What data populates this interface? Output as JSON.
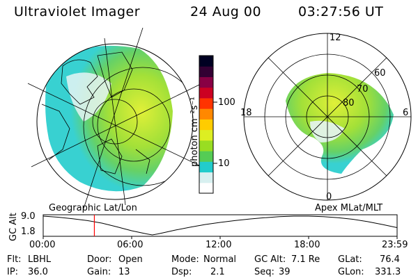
{
  "header": {
    "title": "Ultraviolet Imager",
    "date": "24 Aug 00",
    "time": "03:27:56 UT"
  },
  "colorbar": {
    "unit_label": "photon cm⁻²s⁻¹",
    "ticks": [
      {
        "label": "100",
        "value": 100
      },
      {
        "label": "10",
        "value": 10
      }
    ],
    "colors": [
      "#ffffff",
      "#d8f0f0",
      "#22cccc",
      "#55cc55",
      "#99dd22",
      "#ddee22",
      "#ffcc00",
      "#ff8800",
      "#ff3300",
      "#cc0022",
      "#880044",
      "#330033",
      "#000022"
    ]
  },
  "left_panel": {
    "caption": "Geographic Lat/Lon"
  },
  "right_panel": {
    "caption": "Apex MLat/MLT",
    "mlt_labels": [
      "12",
      "18",
      "6",
      "0"
    ],
    "lat_labels": [
      "60",
      "70",
      "80"
    ]
  },
  "gc_alt_plot": {
    "ylabel": "GC Alt",
    "y_max_label": "9.0",
    "y_min_label": "1.8",
    "y_range": [
      1.8,
      9.0
    ],
    "x_range_hours": [
      0,
      24
    ],
    "x_tick_labels": [
      "00:00",
      "06:00",
      "12:00",
      "18:00",
      "23:59"
    ],
    "marker_hour": 3.47,
    "marker_color": "#ff0000",
    "curve_points": [
      [
        0,
        9.0
      ],
      [
        1,
        8.6
      ],
      [
        2,
        8.0
      ],
      [
        3,
        7.3
      ],
      [
        4,
        6.3
      ],
      [
        5,
        4.9
      ],
      [
        6,
        3.4
      ],
      [
        7,
        2.2
      ],
      [
        7.4,
        1.8
      ],
      [
        7.8,
        2.2
      ],
      [
        9,
        3.7
      ],
      [
        10,
        4.8
      ],
      [
        11,
        5.8
      ],
      [
        12,
        6.6
      ],
      [
        13,
        7.3
      ],
      [
        14,
        7.9
      ],
      [
        15,
        8.4
      ],
      [
        16,
        8.8
      ],
      [
        17,
        9.0
      ],
      [
        18,
        9.0
      ],
      [
        19,
        8.8
      ],
      [
        20,
        8.4
      ],
      [
        21,
        7.8
      ],
      [
        22,
        6.9
      ],
      [
        23,
        5.8
      ],
      [
        24,
        4.6
      ]
    ]
  },
  "info": {
    "flt_label": "Flt:",
    "flt_value": "LBHL",
    "ip_label": "IP:",
    "ip_value": "36.0",
    "door_label": "Door:",
    "door_value": "Open",
    "gain_label": "Gain:",
    "gain_value": "13",
    "mode_label": "Mode:",
    "mode_value": "Normal",
    "dsp_label": "Dsp:",
    "dsp_value": "2.1",
    "gcalt_label": "GC Alt:",
    "gcalt_value": "7.1 Re",
    "seq_label": "Seq:",
    "seq_value": "39",
    "glat_label": "GLat:",
    "glat_value": "76.4",
    "glon_label": "GLon:",
    "glon_value": "331.3"
  }
}
